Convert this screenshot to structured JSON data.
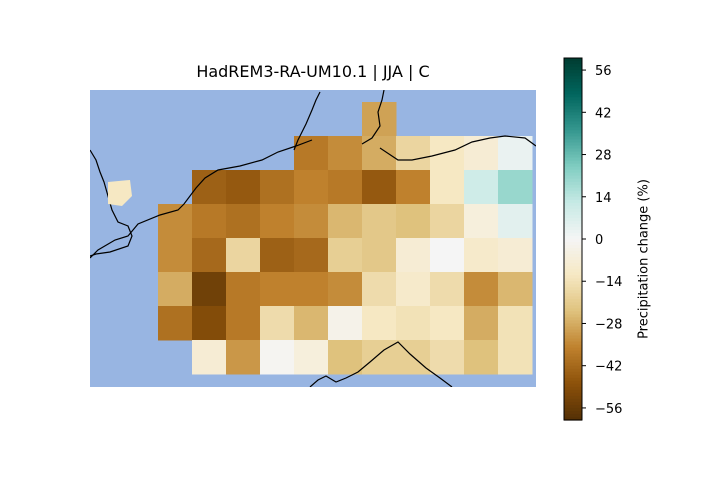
{
  "title": "HadREM3-RA-UM10.1 | JJA | C",
  "colorbar": {
    "label": "Precipitation change (%)",
    "ticks": [
      56,
      42,
      28,
      14,
      0,
      -14,
      -28,
      -42,
      -56
    ],
    "tick_labels": [
      "56",
      "42",
      "28",
      "14",
      "0",
      "−14",
      "−28",
      "−42",
      "−56"
    ],
    "min": -60,
    "max": 60,
    "colormap": "BrBG",
    "colormap_stops": [
      "#543005",
      "#8c510a",
      "#bf812d",
      "#dfc27d",
      "#f6e8c3",
      "#f5f5f5",
      "#c7eae5",
      "#80cdc1",
      "#35978f",
      "#01665e",
      "#003c30"
    ]
  },
  "colors": {
    "sea": "#98b5e2",
    "coastline": "#000000"
  },
  "grid": {
    "comment_free": true,
    "columns": 13,
    "rows": 9,
    "values": [
      [
        null,
        null,
        null,
        null,
        null,
        null,
        null,
        null,
        -30,
        null,
        null,
        null,
        null
      ],
      [
        null,
        null,
        null,
        null,
        null,
        null,
        -38,
        -34,
        -28,
        -18,
        -12,
        -8,
        3
      ],
      [
        null,
        null,
        null,
        -44,
        -46,
        -40,
        -36,
        -38,
        -46,
        -36,
        -12,
        10,
        20
      ],
      [
        null,
        null,
        -34,
        -38,
        -40,
        -36,
        -34,
        -26,
        -22,
        -24,
        -18,
        -6,
        5
      ],
      [
        null,
        null,
        -34,
        -42,
        -18,
        -44,
        -42,
        -20,
        -22,
        -8,
        0,
        -10,
        -8
      ],
      [
        null,
        null,
        -28,
        -54,
        -38,
        -36,
        -36,
        -34,
        -16,
        -10,
        -16,
        -34,
        -26
      ],
      [
        null,
        null,
        -40,
        -50,
        -38,
        -16,
        -26,
        -3,
        -12,
        -14,
        -12,
        -28,
        -14
      ],
      [
        null,
        null,
        null,
        -8,
        -32,
        -1,
        -6,
        -24,
        -20,
        -20,
        -16,
        -24,
        -14
      ],
      [
        null,
        null,
        null,
        null,
        null,
        null,
        null,
        null,
        null,
        null,
        null,
        null,
        null
      ]
    ]
  }
}
